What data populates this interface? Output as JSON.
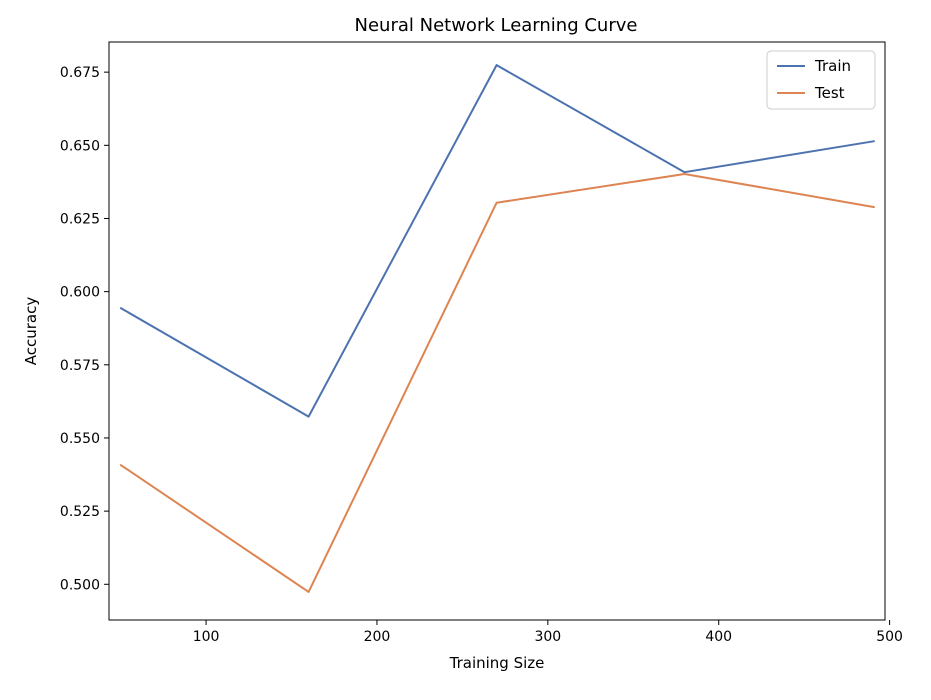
{
  "chart_data": {
    "type": "line",
    "title": "Neural Network Learning Curve",
    "xlabel": "Training Size",
    "ylabel": "Accuracy",
    "xlim": [
      43.2,
      497.3
    ],
    "ylim": [
      0.4878,
      0.6853
    ],
    "xticks": [
      100,
      200,
      300,
      400,
      500
    ],
    "yticks": [
      0.5,
      0.525,
      0.55,
      0.575,
      0.6,
      0.625,
      0.65,
      0.675
    ],
    "x": [
      50,
      160,
      270,
      380,
      491
    ],
    "series": [
      {
        "name": "Train",
        "color": "#4c72b0",
        "values": [
          0.5944,
          0.5573,
          0.6774,
          0.6408,
          0.6514
        ]
      },
      {
        "name": "Test",
        "color": "#dd8452",
        "values": [
          0.5408,
          0.4974,
          0.6304,
          0.6402,
          0.6289
        ]
      }
    ],
    "legend": "top-right",
    "grid": false
  }
}
